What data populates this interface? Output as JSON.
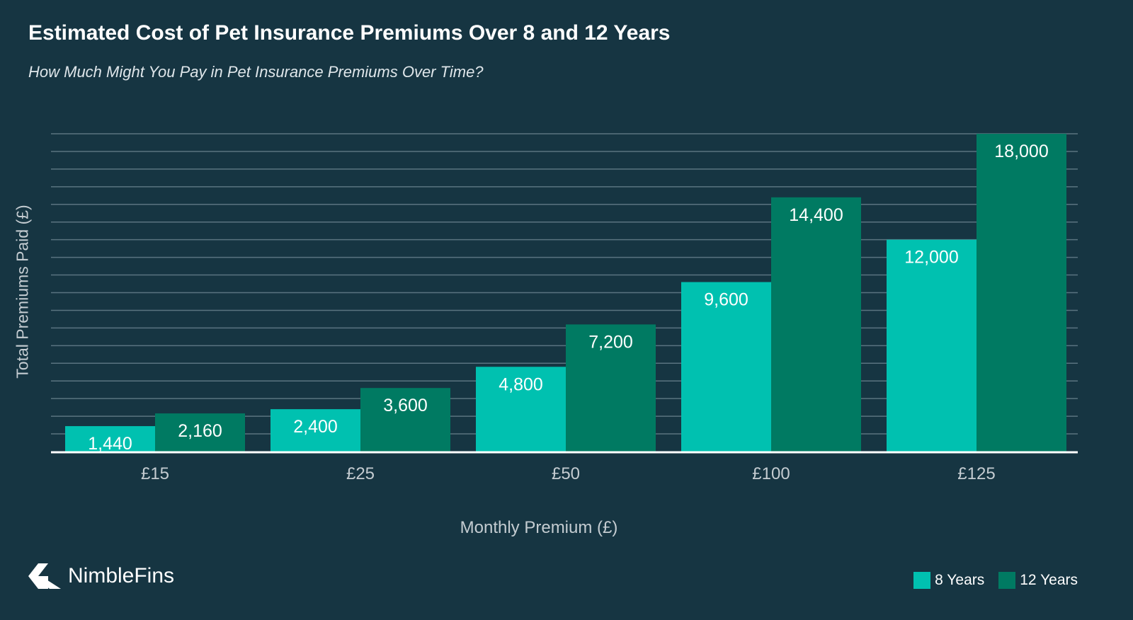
{
  "title": "Estimated Cost of Pet Insurance Premiums Over 8 and 12 Years",
  "subtitle": "How Much Might You Pay in Pet Insurance Premiums Over Time?",
  "brand": {
    "name": "NimbleFins",
    "logo_icon": "nimblefins-arrow-icon"
  },
  "colors": {
    "background": "#163542",
    "gridline": "#5a7480",
    "axis": "#ffffff",
    "series_8": "#00c1b0",
    "series_12": "#007a62"
  },
  "chart_data": {
    "type": "bar",
    "title": "Estimated Cost of Pet Insurance Premiums Over 8 and 12 Years",
    "subtitle": "How Much Might You Pay in Pet Insurance Premiums Over Time?",
    "xlabel": "Monthly Premium (£)",
    "ylabel": "Total Premiums Paid (£)",
    "categories": [
      "£15",
      "£25",
      "£50",
      "£100",
      "£125"
    ],
    "series": [
      {
        "name": "8 Years",
        "values": [
          1440,
          2400,
          4800,
          9600,
          12000
        ],
        "labels": [
          "1,440",
          "2,400",
          "4,800",
          "9,600",
          "12,000"
        ]
      },
      {
        "name": "12 Years",
        "values": [
          2160,
          3600,
          7200,
          14400,
          18000
        ],
        "labels": [
          "2,160",
          "3,600",
          "7,200",
          "14,400",
          "18,000"
        ]
      }
    ],
    "ylim": [
      0,
      18000
    ],
    "grid": true,
    "y_tick_labels_shown": false,
    "legend_position": "bottom-right"
  }
}
